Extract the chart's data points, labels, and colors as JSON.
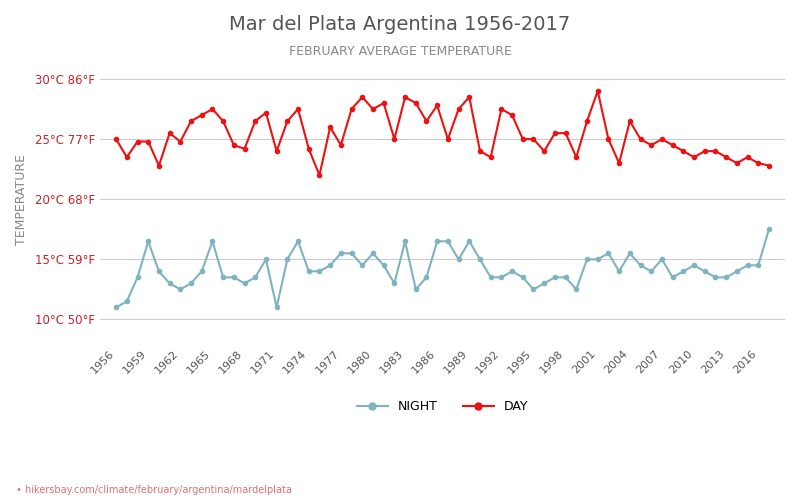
{
  "title": "Mar del Plata Argentina 1956-2017",
  "subtitle": "FEBRUARY AVERAGE TEMPERATURE",
  "ylabel": "TEMPERATURE",
  "xlabel_url": "hikersbay.com/climate/february/argentina/mardelplata",
  "yticks_c": [
    10,
    15,
    20,
    25,
    30
  ],
  "yticks_labels": [
    "10°C 50°F",
    "15°C 59°F",
    "20°C 68°F",
    "25°C 77°F",
    "30°C 86°F"
  ],
  "years": [
    1956,
    1957,
    1958,
    1959,
    1960,
    1961,
    1962,
    1963,
    1964,
    1965,
    1966,
    1967,
    1968,
    1969,
    1970,
    1971,
    1972,
    1973,
    1974,
    1975,
    1976,
    1977,
    1978,
    1979,
    1980,
    1981,
    1982,
    1983,
    1984,
    1985,
    1986,
    1987,
    1988,
    1989,
    1990,
    1991,
    1992,
    1993,
    1994,
    1995,
    1996,
    1997,
    1998,
    1999,
    2000,
    2001,
    2002,
    2003,
    2004,
    2005,
    2006,
    2007,
    2008,
    2009,
    2010,
    2011,
    2012,
    2013,
    2014,
    2015,
    2016,
    2017
  ],
  "day_temps": [
    25.0,
    23.5,
    24.8,
    24.8,
    22.8,
    25.5,
    24.8,
    26.5,
    27.0,
    27.5,
    26.5,
    24.5,
    24.2,
    26.5,
    27.2,
    24.0,
    26.5,
    27.5,
    24.2,
    22.0,
    26.0,
    24.5,
    27.5,
    28.5,
    27.5,
    28.0,
    25.0,
    28.5,
    28.0,
    26.5,
    27.8,
    25.0,
    27.5,
    28.5,
    24.0,
    23.5,
    27.5,
    27.0,
    25.0,
    25.0,
    24.0,
    25.5,
    25.5,
    23.5,
    26.5,
    29.0,
    25.0,
    23.0,
    26.5,
    25.0,
    24.5,
    25.0,
    24.5,
    24.0,
    23.5,
    24.0,
    24.0,
    23.5,
    23.0,
    23.5,
    23.0,
    22.8
  ],
  "night_temps": [
    11.0,
    11.5,
    13.5,
    16.5,
    14.0,
    13.0,
    12.5,
    13.0,
    14.0,
    16.5,
    13.5,
    13.5,
    13.0,
    13.5,
    15.0,
    11.0,
    15.0,
    16.5,
    14.0,
    14.0,
    14.5,
    15.5,
    15.5,
    14.5,
    15.5,
    14.5,
    13.0,
    16.5,
    12.5,
    13.5,
    16.5,
    16.5,
    15.0,
    16.5,
    15.0,
    13.5,
    13.5,
    14.0,
    13.5,
    12.5,
    13.0,
    13.5,
    13.5,
    12.5,
    15.0,
    15.0,
    15.5,
    14.0,
    15.5,
    14.5,
    14.0,
    15.0,
    13.5,
    14.0,
    14.5,
    14.0,
    13.5,
    13.5,
    14.0,
    14.5,
    14.5,
    17.5
  ],
  "day_color": "#ee1111",
  "night_color": "#7fb3bf",
  "day_marker": "o",
  "night_marker": "o",
  "marker_size": 3,
  "line_width": 1.5,
  "title_color": "#555555",
  "subtitle_color": "#888888",
  "ytick_label_color": "#cc2222",
  "ylabel_color": "#888888",
  "grid_color": "#cccccc",
  "background_color": "#ffffff",
  "legend_night_label": "NIGHT",
  "legend_day_label": "DAY",
  "ylim": [
    8,
    32
  ],
  "xlim": [
    1954.5,
    2018.5
  ],
  "xtick_years": [
    1956,
    1959,
    1962,
    1965,
    1968,
    1971,
    1974,
    1977,
    1980,
    1983,
    1986,
    1989,
    1992,
    1995,
    1998,
    2001,
    2004,
    2007,
    2010,
    2013,
    2016
  ]
}
